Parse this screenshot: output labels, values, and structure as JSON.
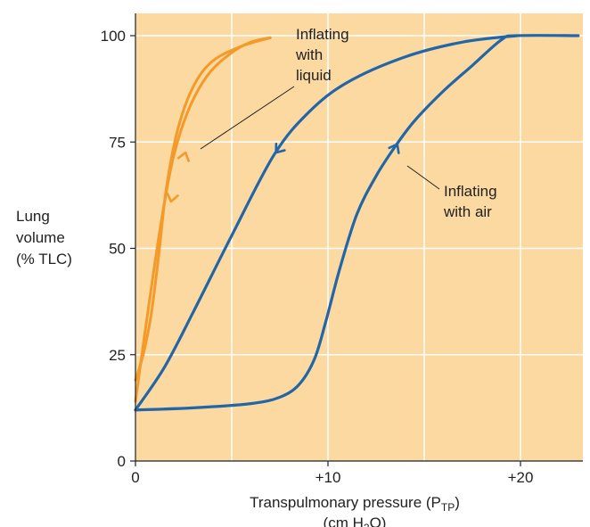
{
  "chart_data": {
    "type": "line",
    "xlabel": "Transpulmonary pressure (P",
    "xlabel_sub": "TP",
    "xlabel_close": ")",
    "xlabel_units": "(cm H",
    "xlabel_units_sub": "2",
    "xlabel_units_close": "O)",
    "ylabel_lines": [
      "Lung",
      "volume",
      "(% TLC)"
    ],
    "xlim": [
      0,
      23
    ],
    "ylim": [
      0,
      105
    ],
    "xticks": [
      {
        "value": 0,
        "label": "0"
      },
      {
        "value": 10,
        "label": "+10"
      },
      {
        "value": 20,
        "label": "+20"
      }
    ],
    "yticks": [
      {
        "value": 0,
        "label": "0"
      },
      {
        "value": 25,
        "label": "25"
      },
      {
        "value": 50,
        "label": "50"
      },
      {
        "value": 75,
        "label": "75"
      },
      {
        "value": 100,
        "label": "100"
      }
    ],
    "grid": true,
    "colors": {
      "background": "#fbd9a0",
      "grid": "#ffffff",
      "liquid": "#f39a2a",
      "air": "#2266a8",
      "axis": "#222222"
    },
    "series": [
      {
        "key": "liquid_inflation",
        "points": [
          [
            0,
            14
          ],
          [
            0.3,
            24
          ],
          [
            0.8,
            40
          ],
          [
            1.4,
            58
          ],
          [
            2.0,
            72
          ],
          [
            2.8,
            83
          ],
          [
            3.8,
            91
          ],
          [
            5.0,
            96
          ],
          [
            6.0,
            98.5
          ],
          [
            7.0,
            99.5
          ]
        ]
      },
      {
        "key": "liquid_deflation",
        "points": [
          [
            7.0,
            99.5
          ],
          [
            5.5,
            97.5
          ],
          [
            4.0,
            94
          ],
          [
            3.0,
            88
          ],
          [
            2.2,
            78
          ],
          [
            1.6,
            64
          ],
          [
            1.2,
            48
          ],
          [
            0.8,
            34
          ],
          [
            0.4,
            25
          ],
          [
            0,
            19
          ]
        ]
      },
      {
        "key": "air_inflation",
        "points": [
          [
            0,
            12
          ],
          [
            3,
            12.5
          ],
          [
            6,
            13.5
          ],
          [
            7.5,
            15
          ],
          [
            8.5,
            18
          ],
          [
            9.3,
            24
          ],
          [
            9.9,
            33
          ],
          [
            10.6,
            45
          ],
          [
            11.5,
            58
          ],
          [
            12.5,
            67
          ],
          [
            13.5,
            74
          ],
          [
            14.5,
            80
          ],
          [
            16,
            87
          ],
          [
            17.5,
            93
          ],
          [
            19,
            99
          ],
          [
            19.8,
            100
          ],
          [
            23,
            100
          ]
        ]
      },
      {
        "key": "air_deflation",
        "points": [
          [
            19.8,
            100
          ],
          [
            17,
            98.5
          ],
          [
            14,
            95
          ],
          [
            11,
            89
          ],
          [
            9,
            82
          ],
          [
            7.2,
            72
          ],
          [
            5,
            53
          ],
          [
            3,
            35
          ],
          [
            1.5,
            22
          ],
          [
            0,
            12
          ]
        ]
      }
    ],
    "annotations": {
      "liquid_lines": [
        "Inflating",
        "with",
        "liquid"
      ],
      "air_lines": [
        "Inflating",
        "with air"
      ]
    }
  }
}
